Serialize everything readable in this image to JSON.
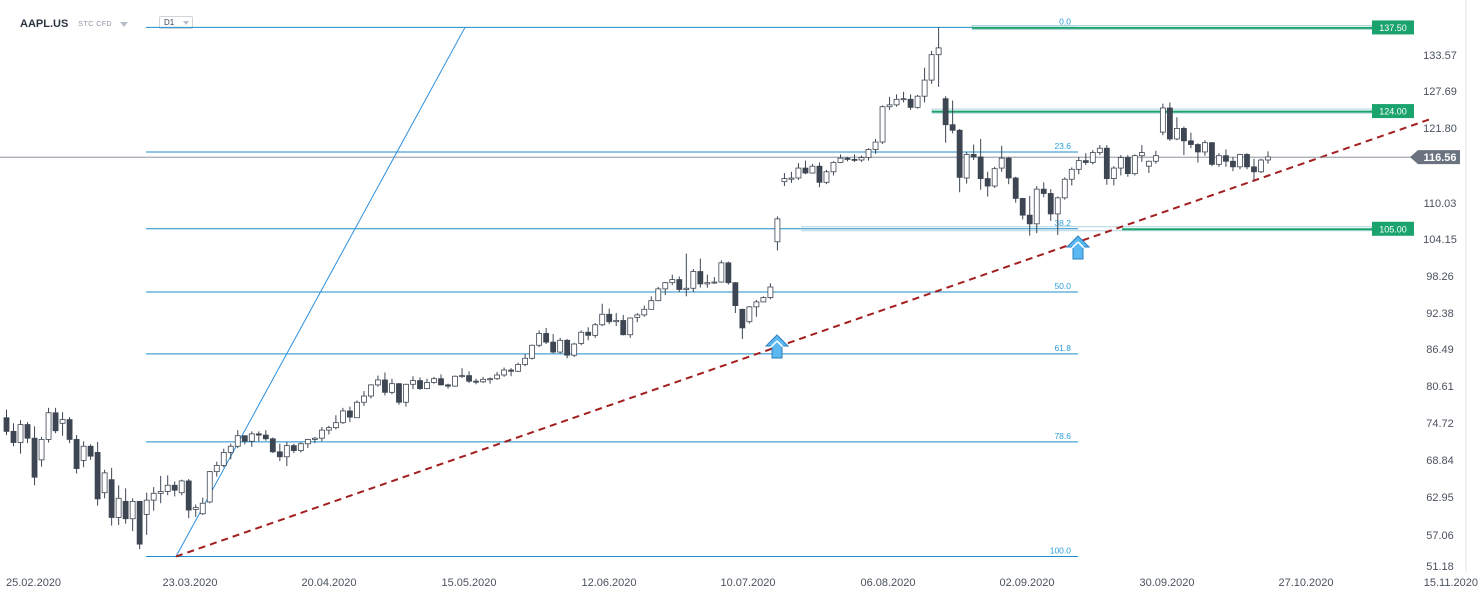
{
  "header": {
    "symbol": "AAPL.US",
    "instrument_tag": "STC  CFD",
    "timeframe": "D1"
  },
  "colors": {
    "up_candle_fill": "#ffffff",
    "down_candle_fill": "#3d4652",
    "fib_line": "#1f8dc7",
    "fib_label": "#2a9fd8",
    "trendline": "#a31f1f",
    "level_badge": "#1aa36c",
    "price_badge": "#6b7380",
    "arrow": "#5bb8f0"
  },
  "chart_data": {
    "type": "candlestick",
    "price_axis_ticks": [
      "133.57",
      "127.69",
      "121.80",
      "110.03",
      "104.15",
      "98.26",
      "92.38",
      "86.49",
      "80.61",
      "74.72",
      "68.84",
      "62.95",
      "57.06",
      "51.18"
    ],
    "date_axis_ticks": [
      "25.02.2020",
      "23.03.2020",
      "20.04.2020",
      "15.05.2020",
      "12.06.2020",
      "10.07.2020",
      "06.08.2020",
      "02.09.2020",
      "30.09.2020",
      "27.10.2020",
      "15.11.2020"
    ],
    "ylim": [
      49.6,
      138.7
    ],
    "fibonacci": [
      {
        "label": "0.0",
        "price": 137.5
      },
      {
        "label": "23.6",
        "price": 117.4
      },
      {
        "label": "38.2",
        "price": 105.0
      },
      {
        "label": "50.0",
        "price": 94.8
      },
      {
        "label": "61.8",
        "price": 84.8
      },
      {
        "label": "78.6",
        "price": 70.6
      },
      {
        "label": "100.0",
        "price": 52.1
      }
    ],
    "levels": [
      {
        "label": "137.50",
        "price": 137.5
      },
      {
        "label": "124.00",
        "price": 124.0
      },
      {
        "label": "105.00",
        "price": 105.0
      }
    ],
    "current_price": {
      "label": "116.56",
      "price": 116.56
    },
    "trendline": {
      "start": {
        "date": "23.03.2020",
        "price": 52.1
      },
      "end": {
        "date": "15.11.2020",
        "price": 122.8
      }
    },
    "fan_line": {
      "start": {
        "date": "23.03.2020",
        "price": 52.1
      },
      "end": {
        "date": "17.05.2020",
        "price": 137.5
      }
    },
    "candles": [
      [
        74.5,
        75.8,
        71.7,
        72.3
      ],
      [
        72.3,
        73.6,
        69.9,
        70.5
      ],
      [
        70.5,
        74.1,
        68.7,
        73.4
      ],
      [
        73.4,
        73.8,
        70.4,
        71.2
      ],
      [
        71.2,
        73.1,
        63.6,
        64.9
      ],
      [
        67.7,
        71.4,
        66.6,
        71.0
      ],
      [
        71.0,
        76.1,
        70.5,
        75.3
      ],
      [
        75.3,
        76.1,
        72.0,
        72.4
      ],
      [
        73.6,
        75.4,
        71.6,
        74.2
      ],
      [
        74.2,
        74.6,
        70.4,
        71.0
      ],
      [
        71.0,
        71.7,
        65.5,
        66.3
      ],
      [
        67.6,
        70.7,
        66.5,
        69.9
      ],
      [
        69.9,
        70.2,
        67.7,
        68.3
      ],
      [
        68.9,
        70.6,
        60.3,
        61.4
      ],
      [
        62.4,
        66.1,
        61.5,
        65.6
      ],
      [
        64.5,
        66.4,
        57.1,
        58.4
      ],
      [
        58.4,
        63.6,
        57.2,
        61.5
      ],
      [
        61.0,
        63.1,
        57.4,
        58.2
      ],
      [
        58.2,
        61.5,
        56.2,
        61.0
      ],
      [
        61.0,
        61.0,
        53.3,
        54.1
      ],
      [
        58.9,
        62.4,
        55.6,
        61.2
      ],
      [
        61.2,
        63.3,
        59.5,
        62.3
      ],
      [
        62.3,
        65.1,
        60.7,
        62.6
      ],
      [
        62.6,
        65.2,
        62.0,
        63.6
      ],
      [
        63.6,
        64.2,
        61.8,
        62.8
      ],
      [
        62.4,
        64.5,
        62.0,
        64.3
      ],
      [
        64.3,
        64.6,
        58.3,
        59.6
      ],
      [
        59.7,
        60.5,
        58.5,
        60.0
      ],
      [
        59.0,
        61.6,
        58.8,
        60.7
      ],
      [
        60.9,
        65.9,
        60.7,
        65.8
      ],
      [
        65.8,
        67.4,
        65.0,
        66.8
      ],
      [
        66.8,
        69.5,
        66.5,
        68.9
      ],
      [
        68.9,
        70.3,
        67.8,
        69.9
      ],
      [
        69.9,
        72.5,
        69.6,
        71.6
      ],
      [
        71.6,
        71.6,
        70.2,
        70.7
      ],
      [
        70.7,
        72.3,
        69.8,
        71.9
      ],
      [
        71.9,
        72.3,
        70.7,
        71.7
      ],
      [
        71.7,
        72.5,
        70.8,
        71.1
      ],
      [
        71.1,
        71.3,
        68.8,
        69.0
      ],
      [
        69.0,
        70.3,
        67.5,
        68.2
      ],
      [
        68.2,
        70.6,
        66.7,
        70.0
      ],
      [
        70.0,
        70.3,
        68.8,
        69.2
      ],
      [
        69.2,
        70.5,
        68.9,
        70.3
      ],
      [
        70.3,
        71.1,
        69.6,
        71.0
      ],
      [
        71.0,
        71.4,
        70.4,
        71.2
      ],
      [
        71.2,
        73.0,
        70.7,
        72.5
      ],
      [
        72.5,
        73.2,
        71.8,
        72.9
      ],
      [
        72.9,
        74.9,
        72.6,
        73.7
      ],
      [
        73.7,
        76.1,
        73.5,
        75.6
      ],
      [
        75.6,
        76.3,
        73.8,
        74.6
      ],
      [
        74.5,
        77.3,
        74.5,
        77.0
      ],
      [
        77.0,
        78.8,
        76.4,
        78.0
      ],
      [
        78.0,
        79.9,
        77.6,
        79.8
      ],
      [
        79.8,
        81.3,
        79.5,
        80.6
      ],
      [
        80.6,
        81.8,
        78.1,
        78.6
      ],
      [
        78.6,
        80.8,
        78.3,
        80.0
      ],
      [
        80.0,
        80.1,
        76.6,
        77.0
      ],
      [
        77.0,
        80.0,
        76.3,
        79.9
      ],
      [
        79.9,
        81.2,
        79.1,
        80.5
      ],
      [
        80.5,
        81.0,
        79.0,
        79.2
      ],
      [
        79.2,
        80.8,
        79.1,
        80.2
      ],
      [
        80.2,
        81.1,
        80.0,
        80.8
      ],
      [
        80.8,
        81.5,
        79.7,
        79.8
      ],
      [
        79.8,
        80.0,
        79.2,
        79.6
      ],
      [
        79.6,
        81.3,
        79.5,
        81.2
      ],
      [
        81.2,
        82.5,
        80.9,
        81.3
      ],
      [
        81.3,
        82.0,
        80.1,
        80.4
      ],
      [
        80.4,
        80.8,
        79.9,
        80.3
      ],
      [
        80.3,
        81.1,
        80.1,
        80.7
      ],
      [
        80.7,
        81.0,
        80.0,
        80.8
      ],
      [
        80.8,
        81.9,
        80.6,
        81.4
      ],
      [
        81.4,
        82.6,
        81.1,
        82.2
      ],
      [
        82.2,
        82.5,
        81.2,
        82.0
      ],
      [
        82.0,
        83.4,
        81.9,
        83.1
      ],
      [
        83.1,
        84.8,
        82.8,
        84.1
      ],
      [
        84.1,
        86.3,
        83.9,
        86.2
      ],
      [
        86.2,
        88.6,
        85.9,
        88.1
      ],
      [
        88.1,
        89.0,
        86.4,
        86.7
      ],
      [
        86.7,
        88.0,
        84.9,
        85.1
      ],
      [
        85.1,
        87.4,
        84.9,
        87.0
      ],
      [
        87.0,
        87.2,
        84.1,
        84.6
      ],
      [
        84.6,
        86.6,
        84.3,
        86.4
      ],
      [
        86.5,
        88.6,
        86.2,
        88.3
      ],
      [
        88.3,
        89.1,
        87.0,
        87.8
      ],
      [
        87.8,
        89.8,
        87.4,
        89.5
      ],
      [
        89.5,
        92.9,
        89.3,
        91.2
      ],
      [
        91.2,
        92.1,
        89.6,
        90.0
      ],
      [
        90.0,
        91.4,
        89.3,
        90.2
      ],
      [
        90.2,
        91.1,
        87.8,
        87.9
      ],
      [
        87.9,
        90.7,
        87.4,
        90.6
      ],
      [
        90.7,
        91.4,
        89.9,
        91.1
      ],
      [
        91.1,
        92.6,
        90.8,
        92.0
      ],
      [
        92.0,
        94.1,
        92.0,
        93.4
      ],
      [
        93.4,
        95.6,
        93.3,
        95.3
      ],
      [
        95.3,
        96.4,
        94.3,
        96.3
      ],
      [
        96.3,
        97.6,
        95.9,
        96.8
      ],
      [
        96.8,
        97.3,
        94.8,
        95.2
      ],
      [
        95.2,
        101.0,
        94.1,
        95.4
      ],
      [
        95.4,
        98.5,
        94.8,
        98.1
      ],
      [
        98.1,
        100.2,
        95.5,
        96.1
      ],
      [
        96.1,
        97.6,
        95.5,
        96.3
      ],
      [
        96.3,
        97.2,
        96.1,
        96.4
      ],
      [
        96.4,
        99.9,
        96.3,
        99.5
      ],
      [
        99.5,
        99.7,
        96.0,
        96.3
      ],
      [
        96.3,
        96.4,
        91.4,
        92.6
      ],
      [
        92.0,
        92.1,
        87.2,
        89.0
      ],
      [
        90.0,
        92.5,
        89.7,
        92.4
      ],
      [
        92.4,
        93.5,
        90.8,
        93.2
      ],
      [
        93.2,
        94.1,
        93.1,
        93.9
      ],
      [
        93.9,
        96.2,
        93.6,
        95.6
      ],
      [
        102.9,
        107.0,
        101.5,
        106.6
      ],
      [
        112.6,
        114.0,
        111.9,
        113.1
      ],
      [
        113.0,
        114.2,
        112.4,
        113.2
      ],
      [
        113.2,
        115.6,
        112.9,
        114.8
      ],
      [
        114.8,
        116.0,
        113.8,
        114.0
      ],
      [
        114.0,
        115.5,
        113.9,
        115.1
      ],
      [
        115.1,
        115.7,
        111.7,
        112.5
      ],
      [
        112.5,
        114.5,
        112.2,
        114.2
      ],
      [
        114.2,
        115.9,
        113.6,
        115.7
      ],
      [
        115.7,
        117.0,
        115.6,
        116.4
      ],
      [
        116.4,
        116.6,
        115.9,
        116.2
      ],
      [
        116.2,
        117.0,
        115.8,
        116.1
      ],
      [
        116.1,
        116.8,
        115.8,
        116.5
      ],
      [
        116.5,
        118.0,
        116.0,
        117.8
      ],
      [
        117.8,
        119.5,
        117.1,
        119.0
      ],
      [
        119.0,
        124.9,
        118.7,
        124.7
      ],
      [
        124.7,
        126.3,
        124.2,
        125.0
      ],
      [
        125.0,
        126.7,
        124.7,
        125.9
      ],
      [
        125.9,
        127.1,
        125.4,
        126.0
      ],
      [
        125.9,
        126.7,
        124.2,
        124.6
      ],
      [
        124.6,
        126.6,
        124.4,
        126.4
      ],
      [
        126.4,
        131.0,
        125.4,
        129.0
      ],
      [
        129.0,
        133.7,
        128.4,
        133.1
      ],
      [
        133.1,
        137.5,
        127.9,
        134.2
      ],
      [
        126.0,
        126.4,
        118.9,
        121.8
      ],
      [
        121.8,
        125.7,
        120.4,
        120.9
      ],
      [
        120.9,
        121.1,
        110.9,
        113.3
      ],
      [
        113.2,
        117.4,
        112.3,
        117.0
      ],
      [
        117.0,
        118.6,
        116.1,
        116.6
      ],
      [
        116.6,
        119.5,
        111.3,
        113.1
      ],
      [
        113.1,
        114.2,
        110.2,
        111.9
      ],
      [
        111.9,
        115.0,
        111.6,
        114.7
      ],
      [
        114.8,
        118.4,
        114.2,
        116.4
      ],
      [
        116.4,
        116.6,
        112.2,
        113.2
      ],
      [
        113.2,
        113.4,
        109.2,
        109.9
      ],
      [
        109.9,
        110.0,
        106.5,
        107.2
      ],
      [
        107.2,
        110.3,
        103.9,
        105.8
      ],
      [
        105.8,
        111.9,
        104.3,
        111.4
      ],
      [
        111.4,
        112.5,
        110.1,
        110.7
      ],
      [
        110.7,
        111.4,
        106.3,
        107.4
      ],
      [
        107.4,
        110.2,
        104.0,
        110.0
      ],
      [
        110.0,
        113.3,
        109.7,
        113.0
      ],
      [
        113.0,
        114.9,
        112.0,
        114.6
      ],
      [
        114.6,
        116.6,
        113.8,
        116.0
      ],
      [
        116.0,
        117.2,
        115.3,
        115.7
      ],
      [
        115.7,
        117.7,
        115.4,
        117.3
      ],
      [
        117.3,
        118.5,
        116.9,
        118.0
      ],
      [
        118.0,
        118.5,
        112.1,
        113.1
      ],
      [
        113.1,
        115.1,
        112.0,
        114.8
      ],
      [
        114.8,
        116.9,
        113.6,
        116.5
      ],
      [
        116.5,
        116.9,
        113.4,
        113.9
      ],
      [
        113.9,
        117.0,
        113.6,
        116.8
      ],
      [
        116.8,
        118.5,
        115.8,
        117.3
      ],
      [
        115.1,
        116.0,
        114.0,
        115.9
      ],
      [
        115.9,
        117.6,
        115.5,
        116.8
      ],
      [
        120.6,
        125.2,
        120.1,
        124.5
      ],
      [
        124.5,
        125.4,
        119.2,
        119.5
      ],
      [
        119.5,
        123.0,
        119.3,
        121.2
      ],
      [
        121.2,
        121.5,
        116.9,
        119.2
      ],
      [
        119.2,
        120.5,
        118.0,
        118.6
      ],
      [
        118.6,
        118.8,
        115.7,
        117.4
      ],
      [
        117.4,
        119.3,
        116.8,
        118.9
      ],
      [
        118.9,
        119.0,
        115.1,
        115.4
      ],
      [
        115.4,
        117.2,
        115.0,
        116.8
      ],
      [
        116.8,
        117.8,
        115.0,
        115.9
      ],
      [
        115.9,
        116.6,
        114.3,
        115.0
      ],
      [
        115.0,
        117.1,
        114.6,
        117.0
      ],
      [
        117.0,
        117.2,
        114.6,
        115.0
      ],
      [
        115.0,
        116.3,
        112.9,
        114.2
      ],
      [
        114.2,
        116.3,
        114.0,
        116.1
      ],
      [
        116.1,
        117.5,
        115.5,
        116.6
      ]
    ]
  }
}
